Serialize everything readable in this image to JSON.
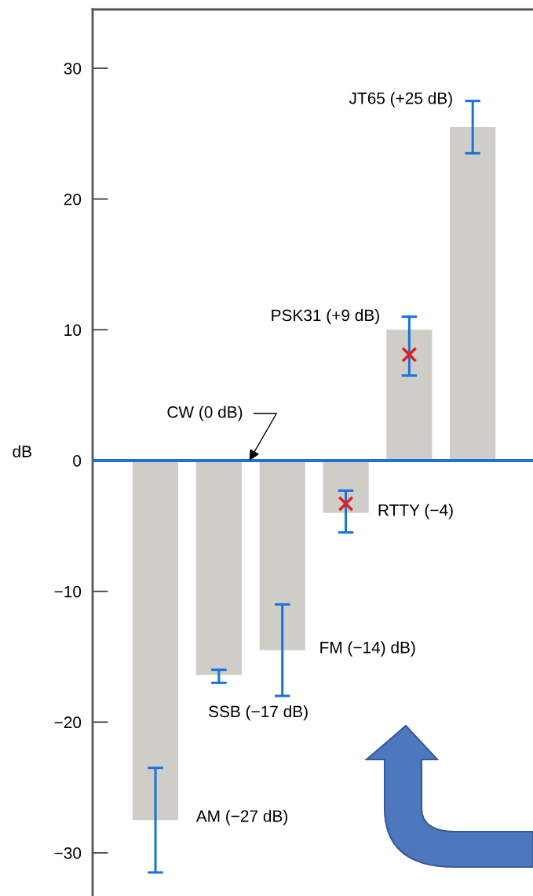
{
  "chart_data": {
    "type": "bar",
    "categories": [
      null,
      null,
      null,
      null,
      null,
      null
    ],
    "series": [
      {
        "color": "#cfcdc8",
        "values": [
          -27.5,
          -16.4,
          -14.5,
          -4,
          10,
          25.5
        ],
        "errors": [
          [
            -31.5,
            -23.5
          ],
          [
            -17.0,
            -16.0
          ],
          [
            -18.0,
            -11.0
          ],
          [
            -5.5,
            -2.3
          ],
          [
            6.5,
            11.0
          ],
          [
            23.5,
            27.5
          ]
        ]
      },
      {
        "type": "scatter",
        "color": "#e02020",
        "marker": "cross",
        "values": [
          null,
          null,
          null,
          -3.3,
          8.1,
          null
        ]
      }
    ],
    "ylabel": "dB",
    "ylim": [
      -33.3,
      34.5
    ],
    "yticks": [
      -30,
      -20,
      -10,
      0,
      10,
      20,
      30
    ],
    "ref_lines": [
      {
        "axis": "y",
        "value": 0,
        "label": "CW (0 dB)",
        "color": "#1a73d9"
      }
    ],
    "annotations": [
      "AM (−27 dB)",
      "SSB (−17 dB)",
      "FM (−14) dB)",
      "RTTY (−4)",
      "PSK31 (+9 dB)",
      "JT65 (+25 dB)"
    ],
    "grid": false
  }
}
